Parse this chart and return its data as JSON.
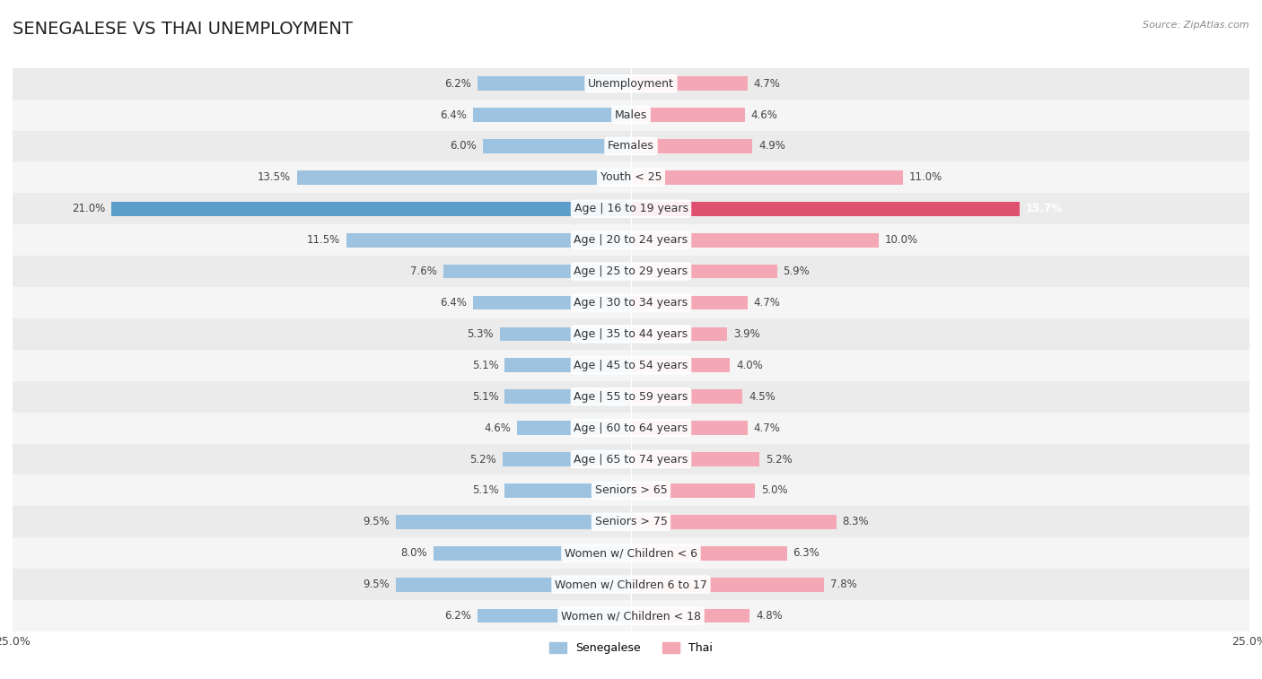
{
  "title": "SENEGALESE VS THAI UNEMPLOYMENT",
  "source": "Source: ZipAtlas.com",
  "categories": [
    "Unemployment",
    "Males",
    "Females",
    "Youth < 25",
    "Age | 16 to 19 years",
    "Age | 20 to 24 years",
    "Age | 25 to 29 years",
    "Age | 30 to 34 years",
    "Age | 35 to 44 years",
    "Age | 45 to 54 years",
    "Age | 55 to 59 years",
    "Age | 60 to 64 years",
    "Age | 65 to 74 years",
    "Seniors > 65",
    "Seniors > 75",
    "Women w/ Children < 6",
    "Women w/ Children 6 to 17",
    "Women w/ Children < 18"
  ],
  "senegalese": [
    6.2,
    6.4,
    6.0,
    13.5,
    21.0,
    11.5,
    7.6,
    6.4,
    5.3,
    5.1,
    5.1,
    4.6,
    5.2,
    5.1,
    9.5,
    8.0,
    9.5,
    6.2
  ],
  "thai": [
    4.7,
    4.6,
    4.9,
    11.0,
    15.7,
    10.0,
    5.9,
    4.7,
    3.9,
    4.0,
    4.5,
    4.7,
    5.2,
    5.0,
    8.3,
    6.3,
    7.8,
    4.8
  ],
  "senegalese_color": "#9dc3e0",
  "thai_color": "#f4a7b4",
  "senegalese_color_highlight": "#5a9ec9",
  "thai_color_highlight": "#e05070",
  "axis_max": 25.0,
  "row_bg_even": "#ebebeb",
  "row_bg_odd": "#f5f5f5",
  "title_fontsize": 14,
  "label_fontsize": 9,
  "value_fontsize": 8.5,
  "bar_height": 0.45
}
